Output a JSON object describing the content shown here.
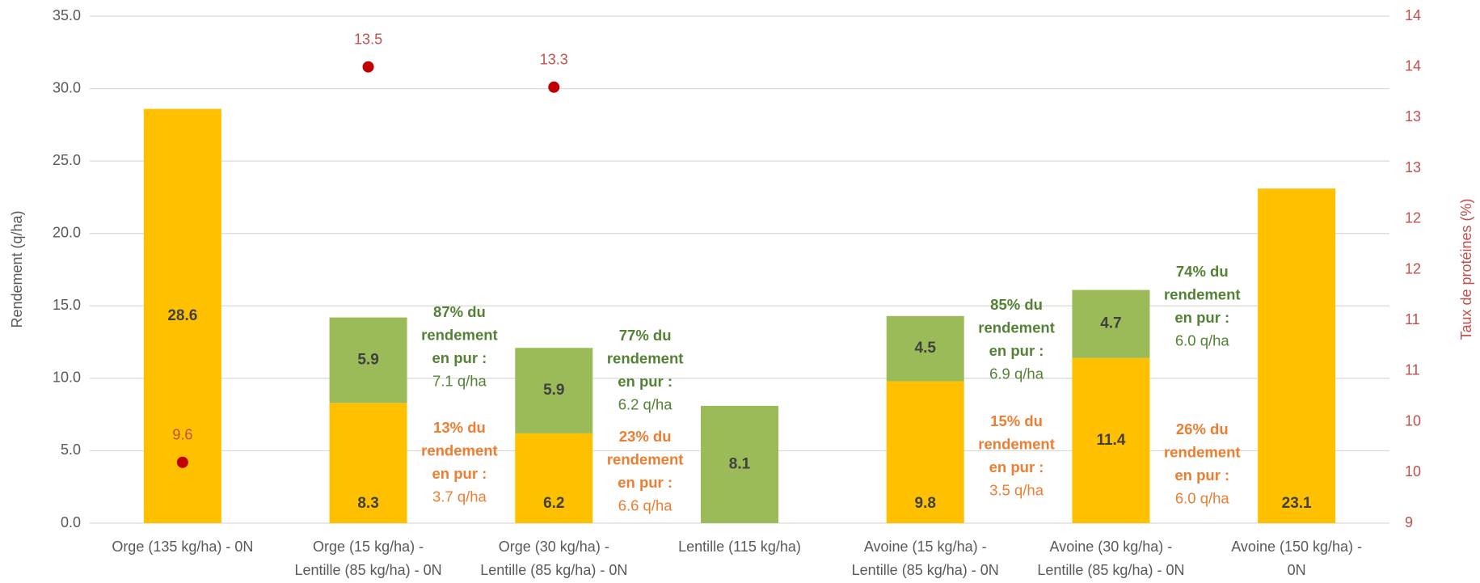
{
  "chart_data": {
    "type": "bar",
    "categories": [
      [
        "Orge (135 kg/ha) - 0N"
      ],
      [
        "Orge (15 kg/ha) -",
        "Lentille (85 kg/ha) - 0N"
      ],
      [
        "Orge (30 kg/ha) -",
        "Lentille (85 kg/ha) - 0N"
      ],
      [
        "Lentille (115 kg/ha)"
      ],
      [
        "Avoine (15 kg/ha) -",
        "Lentille (85 kg/ha) - 0N"
      ],
      [
        "Avoine (30 kg/ha) -",
        "Lentille (85 kg/ha) - 0N"
      ],
      [
        "Avoine (150 kg/ha) -",
        "0N"
      ]
    ],
    "series": [
      {
        "color": "#FFC000",
        "values": [
          28.6,
          8.3,
          6.2,
          null,
          9.8,
          11.4,
          23.1
        ]
      },
      {
        "color": "#9BBB59",
        "values": [
          null,
          5.9,
          5.9,
          8.1,
          4.5,
          4.7,
          null
        ]
      },
      {
        "type": "scatter",
        "axis": "y2",
        "color": "#C00000",
        "label_color": "#C0504D",
        "values": [
          9.6,
          13.5,
          13.3,
          null,
          null,
          null,
          null
        ]
      }
    ],
    "y_label": "Rendement (q/ha)",
    "y2_label": "Taux de protéines (%)",
    "y2_color": "#C0504D",
    "ylim": [
      0,
      35
    ],
    "yticks": [
      {
        "value": 0,
        "label": "0.0"
      },
      {
        "value": 5,
        "label": "5.0"
      },
      {
        "value": 10,
        "label": "10.0"
      },
      {
        "value": 15,
        "label": "15.0"
      },
      {
        "value": 20,
        "label": "20.0"
      },
      {
        "value": 25,
        "label": "25.0"
      },
      {
        "value": 30,
        "label": "30.0"
      },
      {
        "value": 35,
        "label": "35.0"
      }
    ],
    "y2lim": [
      9,
      14
    ],
    "y2ticks": [
      9,
      {
        "value": 9.5,
        "label": "10"
      },
      10,
      {
        "value": 10.5,
        "label": "11"
      },
      11,
      {
        "value": 11.5,
        "label": "12"
      },
      12,
      {
        "value": 12.5,
        "label": "13"
      },
      13,
      {
        "value": 13.5,
        "label": "14"
      },
      14
    ],
    "grid": true,
    "annotations": [
      {
        "color": "#548235",
        "lines": [
          "87% du",
          "rendement",
          "en pur :",
          "7.1 q/ha"
        ]
      },
      {
        "color": "#ED7D31",
        "lines": [
          "13% du",
          "rendement",
          "en pur :",
          "3.7 q/ha"
        ]
      },
      {
        "color": "#548235",
        "lines": [
          "77% du",
          "rendement",
          "en pur :",
          "6.2 q/ha"
        ]
      },
      {
        "color": "#ED7D31",
        "lines": [
          "23% du",
          "rendement",
          "en pur :",
          "6.6 q/ha"
        ]
      },
      {
        "color": "#548235",
        "lines": [
          "85% du",
          "rendement",
          "en pur :",
          "6.9 q/ha"
        ]
      },
      {
        "color": "#ED7D31",
        "lines": [
          "15% du",
          "rendement",
          "en pur :",
          "3.5 q/ha"
        ]
      },
      {
        "color": "#548235",
        "lines": [
          "74% du",
          "rendement",
          "en pur :",
          "6.0 q/ha"
        ]
      },
      {
        "color": "#ED7D31",
        "lines": [
          "26% du",
          "rendement",
          "en pur :",
          "6.0 q/ha"
        ]
      }
    ]
  }
}
